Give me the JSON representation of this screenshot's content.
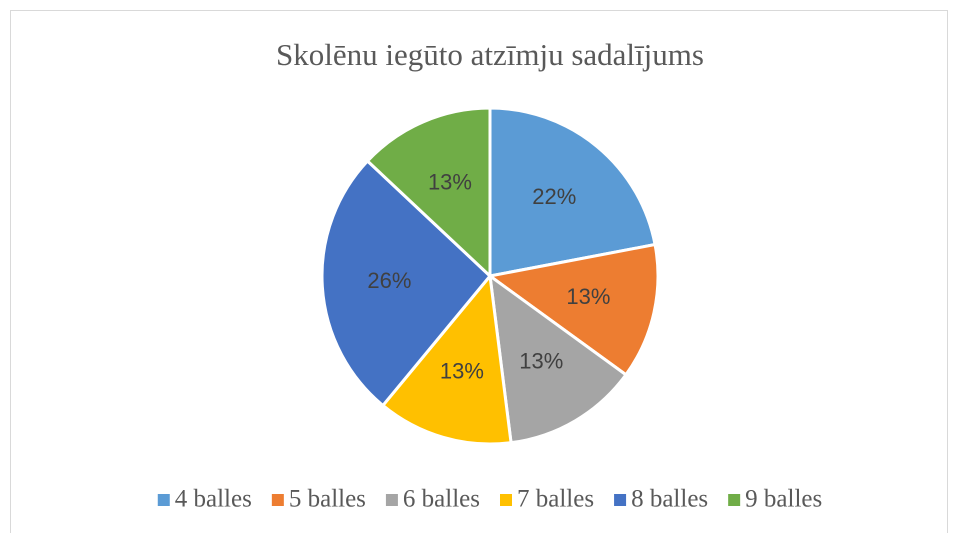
{
  "chart_data": {
    "type": "pie",
    "title": "Skolēnu iegūto atzīmju sadalījums",
    "categories": [
      "4 balles",
      "5 balles",
      "6 balles",
      "7 balles",
      "8 balles",
      "9 balles"
    ],
    "values": [
      22,
      13,
      13,
      13,
      26,
      13
    ],
    "value_labels": [
      "22%",
      "13%",
      "13%",
      "13%",
      "26%",
      "13%"
    ],
    "colors": [
      "#5b9bd5",
      "#ed7d31",
      "#a5a5a5",
      "#ffc000",
      "#4472c4",
      "#70ad47"
    ],
    "legend": "bottom"
  }
}
